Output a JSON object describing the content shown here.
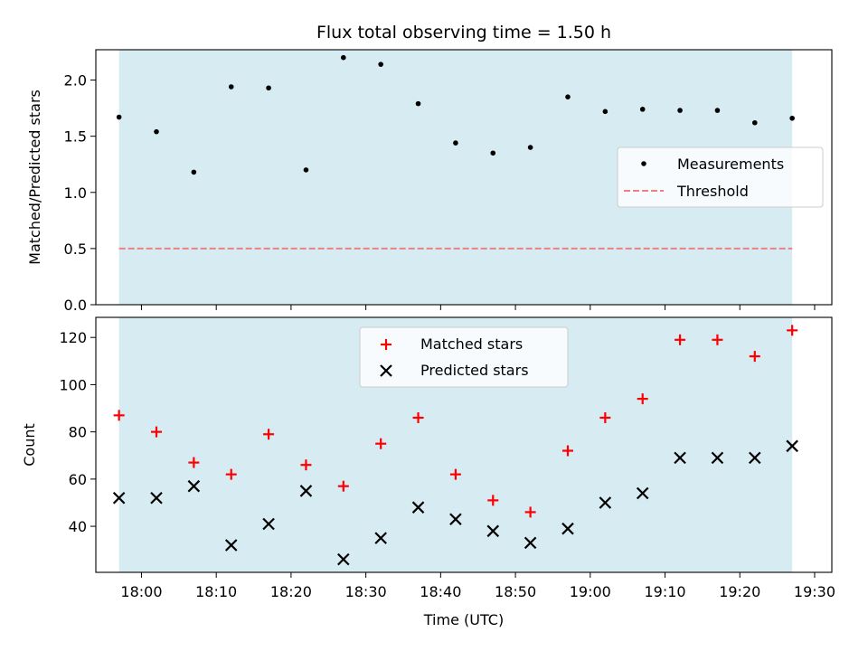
{
  "chart_data": [
    {
      "type": "scatter",
      "title": "Flux total observing time = 1.50 h",
      "xlabel": "",
      "ylabel": "Matched/Predicted stars",
      "ylim": [
        0,
        2.27
      ],
      "yticks": [
        "0.0",
        "0.5",
        "1.0",
        "1.5",
        "2.0"
      ],
      "legend_position": "center-right",
      "shaded_span": [
        "17:57",
        "19:27"
      ],
      "series": [
        {
          "name": "Measurements",
          "color": "#000000",
          "marker": "dot",
          "x": [
            "17:57",
            "18:02",
            "18:07",
            "18:12",
            "18:17",
            "18:22",
            "18:27",
            "18:32",
            "18:37",
            "18:42",
            "18:47",
            "18:52",
            "18:57",
            "19:02",
            "19:07",
            "19:12",
            "19:17",
            "19:22",
            "19:27"
          ],
          "y": [
            1.67,
            1.54,
            1.18,
            1.94,
            1.93,
            1.2,
            2.2,
            2.14,
            1.79,
            1.44,
            1.35,
            1.4,
            1.85,
            1.72,
            1.74,
            1.73,
            1.73,
            1.62,
            1.66
          ]
        },
        {
          "name": "Threshold",
          "color": "#f08080",
          "style": "dashed",
          "x": [
            "17:57",
            "19:27"
          ],
          "y": [
            0.5,
            0.5
          ]
        }
      ]
    },
    {
      "type": "scatter",
      "title": "",
      "xlabel": "Time (UTC)",
      "ylabel": "Count",
      "ylim": [
        20.5,
        128.5
      ],
      "yticks": [
        "40",
        "60",
        "80",
        "100",
        "120"
      ],
      "xticks": [
        "18:00",
        "18:10",
        "18:20",
        "18:30",
        "18:40",
        "18:50",
        "19:00",
        "19:10",
        "19:20",
        "19:30"
      ],
      "legend_position": "upper-center",
      "shaded_span": [
        "17:57",
        "19:27"
      ],
      "series": [
        {
          "name": "Matched stars",
          "color": "#ff0000",
          "marker": "plus",
          "x": [
            "17:57",
            "18:02",
            "18:07",
            "18:12",
            "18:17",
            "18:22",
            "18:27",
            "18:32",
            "18:37",
            "18:42",
            "18:47",
            "18:52",
            "18:57",
            "19:02",
            "19:07",
            "19:12",
            "19:17",
            "19:22",
            "19:27"
          ],
          "y": [
            87,
            80,
            67,
            62,
            79,
            66,
            57,
            75,
            86,
            62,
            51,
            46,
            72,
            86,
            94,
            119,
            119,
            112,
            123
          ]
        },
        {
          "name": "Predicted stars",
          "color": "#000000",
          "marker": "x",
          "x": [
            "17:57",
            "18:02",
            "18:07",
            "18:12",
            "18:17",
            "18:22",
            "18:27",
            "18:32",
            "18:37",
            "18:42",
            "18:47",
            "18:52",
            "18:57",
            "19:02",
            "19:07",
            "19:12",
            "19:17",
            "19:22",
            "19:27"
          ],
          "y": [
            52,
            52,
            57,
            32,
            41,
            55,
            26,
            35,
            48,
            43,
            38,
            33,
            39,
            50,
            54,
            69,
            69,
            69,
            74
          ]
        }
      ]
    }
  ]
}
